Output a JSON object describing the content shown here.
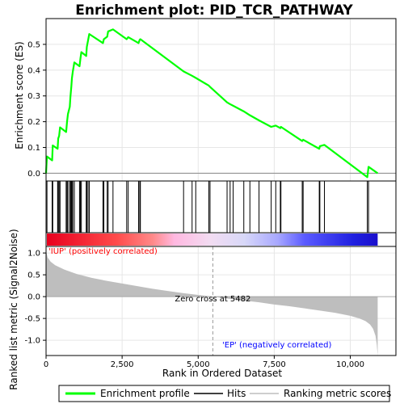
{
  "chart_data": {
    "type": "line",
    "title": "Enrichment plot: PID_TCR_PATHWAY",
    "xlabel": "Rank in Ordered Dataset",
    "es_panel": {
      "ylabel": "Enrichment score (ES)",
      "ylim": [
        -0.03,
        0.6
      ],
      "yticks": [
        0.0,
        0.1,
        0.2,
        0.3,
        0.4,
        0.5
      ],
      "ytick_labels": [
        "0.0",
        "0.1",
        "0.2",
        "0.3",
        "0.4",
        "0.5"
      ],
      "line_color": "#00ff00",
      "points": [
        [
          0,
          0.0
        ],
        [
          30,
          0.065
        ],
        [
          200,
          0.05
        ],
        [
          220,
          0.108
        ],
        [
          380,
          0.095
        ],
        [
          400,
          0.135
        ],
        [
          430,
          0.145
        ],
        [
          460,
          0.178
        ],
        [
          660,
          0.16
        ],
        [
          690,
          0.2
        ],
        [
          720,
          0.23
        ],
        [
          780,
          0.258
        ],
        [
          800,
          0.295
        ],
        [
          830,
          0.335
        ],
        [
          850,
          0.368
        ],
        [
          880,
          0.395
        ],
        [
          930,
          0.43
        ],
        [
          1100,
          0.415
        ],
        [
          1130,
          0.445
        ],
        [
          1160,
          0.47
        ],
        [
          1320,
          0.455
        ],
        [
          1340,
          0.49
        ],
        [
          1380,
          0.515
        ],
        [
          1420,
          0.54
        ],
        [
          1870,
          0.505
        ],
        [
          1900,
          0.52
        ],
        [
          2010,
          0.53
        ],
        [
          2040,
          0.55
        ],
        [
          2200,
          0.558
        ],
        [
          2650,
          0.52
        ],
        [
          2700,
          0.528
        ],
        [
          3040,
          0.505
        ],
        [
          3080,
          0.518
        ],
        [
          3100,
          0.52
        ],
        [
          4520,
          0.395
        ],
        [
          4800,
          0.378
        ],
        [
          4920,
          0.37
        ],
        [
          5350,
          0.34
        ],
        [
          5390,
          0.335
        ],
        [
          5950,
          0.275
        ],
        [
          6050,
          0.268
        ],
        [
          6150,
          0.262
        ],
        [
          6500,
          0.24
        ],
        [
          6700,
          0.225
        ],
        [
          7000,
          0.205
        ],
        [
          7400,
          0.18
        ],
        [
          7550,
          0.185
        ],
        [
          7700,
          0.175
        ],
        [
          7720,
          0.18
        ],
        [
          8420,
          0.125
        ],
        [
          8450,
          0.13
        ],
        [
          8980,
          0.095
        ],
        [
          9000,
          0.105
        ],
        [
          9150,
          0.11
        ],
        [
          10560,
          -0.015
        ],
        [
          10600,
          0.025
        ],
        [
          10900,
          0.0
        ]
      ]
    },
    "hits": [
      30,
      200,
      220,
      380,
      400,
      430,
      460,
      660,
      690,
      720,
      780,
      800,
      830,
      850,
      880,
      930,
      1100,
      1130,
      1160,
      1320,
      1340,
      1380,
      1420,
      1870,
      1900,
      2010,
      2040,
      2200,
      2650,
      2700,
      3040,
      3080,
      3100,
      4520,
      4800,
      4920,
      5350,
      5390,
      5950,
      6050,
      6150,
      6500,
      6700,
      7000,
      7400,
      7550,
      7700,
      7720,
      8420,
      8450,
      8980,
      9000,
      9150,
      10560,
      10600
    ],
    "metric_panel": {
      "ylabel": "Ranked list metric (Signal2Noise)",
      "ylim": [
        -1.35,
        1.15
      ],
      "yticks": [
        1.0,
        0.5,
        0.0,
        -0.5,
        -1.0
      ],
      "ytick_labels": [
        "1.0",
        "0.5",
        "0.0",
        "-0.5",
        "-1.0"
      ],
      "fill_color": "#bebebe",
      "curve": [
        [
          0,
          1.05
        ],
        [
          50,
          0.9
        ],
        [
          150,
          0.8
        ],
        [
          300,
          0.72
        ],
        [
          600,
          0.62
        ],
        [
          1000,
          0.52
        ],
        [
          1500,
          0.43
        ],
        [
          2000,
          0.36
        ],
        [
          2500,
          0.3
        ],
        [
          3000,
          0.24
        ],
        [
          3500,
          0.18
        ],
        [
          4000,
          0.13
        ],
        [
          4500,
          0.08
        ],
        [
          5000,
          0.04
        ],
        [
          5482,
          0.0
        ],
        [
          6000,
          -0.05
        ],
        [
          6500,
          -0.09
        ],
        [
          7000,
          -0.13
        ],
        [
          7500,
          -0.18
        ],
        [
          8000,
          -0.22
        ],
        [
          8500,
          -0.27
        ],
        [
          9000,
          -0.32
        ],
        [
          9500,
          -0.37
        ],
        [
          10000,
          -0.44
        ],
        [
          10300,
          -0.5
        ],
        [
          10500,
          -0.56
        ],
        [
          10650,
          -0.64
        ],
        [
          10750,
          -0.74
        ],
        [
          10830,
          -0.9
        ],
        [
          10870,
          -1.1
        ],
        [
          10900,
          -1.35
        ]
      ],
      "zero_cross": 5482,
      "zero_cross_label": "Zero cross at 5482",
      "pos_label": "'IUP' (positively correlated)",
      "neg_label": "'EP' (negatively correlated)",
      "pos_label_color": "#ff0000",
      "neg_label_color": "#0000ff"
    },
    "xlim": [
      0,
      11500
    ],
    "xticks": [
      0,
      2500,
      5000,
      7500,
      10000
    ],
    "xtick_labels": [
      "0",
      "2,500",
      "5,000",
      "7,500",
      "10,000"
    ],
    "dataset_size": 10900,
    "colorbar_stops": [
      {
        "rank": 0,
        "color": "#e8001e"
      },
      {
        "rank": 2300,
        "color": "#ff4b4b"
      },
      {
        "rank": 3500,
        "color": "#ff8a8a"
      },
      {
        "rank": 4200,
        "color": "#ffb8e0"
      },
      {
        "rank": 5400,
        "color": "#f2dcf2"
      },
      {
        "rank": 6500,
        "color": "#d8d8f8"
      },
      {
        "rank": 7600,
        "color": "#a8a8ff"
      },
      {
        "rank": 8500,
        "color": "#5a5aff"
      },
      {
        "rank": 10100,
        "color": "#2020e0"
      },
      {
        "rank": 10900,
        "color": "#1a0fcc"
      }
    ],
    "legend": {
      "placement": "bottom",
      "items": [
        {
          "label": "Enrichment profile",
          "color": "#00ff00"
        },
        {
          "label": "Hits",
          "color": "#000000"
        },
        {
          "label": "Ranking metric scores",
          "color": "#bebebe"
        }
      ]
    }
  }
}
